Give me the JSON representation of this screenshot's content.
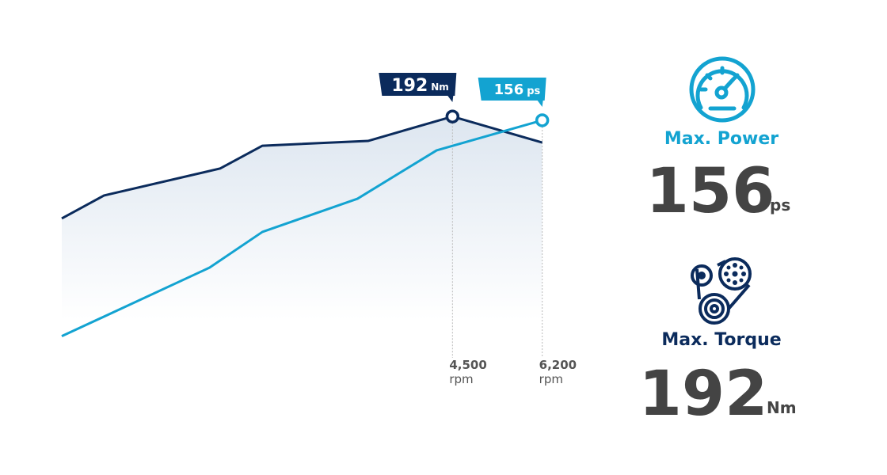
{
  "chart_data": {
    "type": "line",
    "xlim": [
      -2900,
      6400
    ],
    "xticks": [
      {
        "value": 4500,
        "label": "4,500"
      },
      {
        "value": 6200,
        "label": "6,200"
      }
    ],
    "xunit": "rpm",
    "ylim": [
      80,
      200
    ],
    "y2lim": [
      0,
      170
    ],
    "series": [
      {
        "name": "Torque",
        "unit": "Nm",
        "color": "#0b2b5c",
        "x": [
          -2900,
          -2100,
          100,
          900,
          2900,
          4500,
          6200
        ],
        "values": [
          141,
          152.5,
          166,
          177.4,
          179.8,
          192,
          179
        ]
      },
      {
        "name": "Power",
        "unit": "ps",
        "color": "#13a3d1",
        "axis": "y2",
        "x": [
          -2900,
          -100,
          900,
          2700,
          4200,
          6200
        ],
        "values": [
          3,
          51.6,
          76.9,
          100.4,
          134.7,
          156
        ]
      }
    ]
  },
  "stats": [
    {
      "label": "Max. Power",
      "value": 156,
      "unit": "ps"
    },
    {
      "label": "Max. Torque",
      "value": 192,
      "unit": "Nm"
    }
  ]
}
